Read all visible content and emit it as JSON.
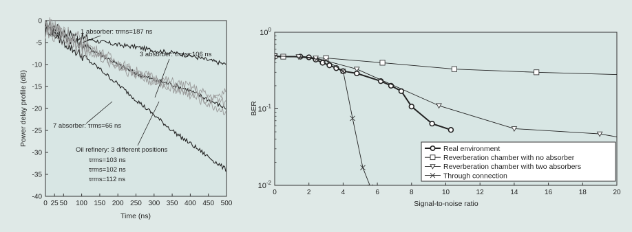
{
  "colors": {
    "panel": "#dfe9e7",
    "plot_bg": "#d8e6e4",
    "line_dark": "#222222",
    "line_grey": "#9a9a9a"
  },
  "chart_data": [
    {
      "type": "line",
      "title": "",
      "xlabel": "Time (ns)",
      "ylabel": "Power delay profile (dB)",
      "xlim": [
        0,
        500
      ],
      "ylim": [
        -40,
        0
      ],
      "xticks": [
        0,
        25,
        50,
        100,
        150,
        200,
        250,
        300,
        350,
        400,
        450,
        500
      ],
      "xtick_labels": [
        "0",
        "25",
        "50",
        "100",
        "150",
        "200",
        "250",
        "300",
        "350",
        "400",
        "450",
        "500"
      ],
      "yticks": [
        0,
        -5,
        -10,
        -15,
        -20,
        -25,
        -30,
        -35,
        -40
      ],
      "ytick_labels": [
        "0",
        "-5",
        "-10",
        "-15",
        "-20",
        "-25",
        "-30",
        "-35",
        "-40"
      ],
      "grid": false,
      "series": [
        {
          "name": "1 absorber",
          "style": "dark",
          "points": [
            [
              0,
              -1
            ],
            [
              25,
              -1.5
            ],
            [
              50,
              -2.5
            ],
            [
              100,
              -3.8
            ],
            [
              150,
              -4.8
            ],
            [
              200,
              -5.5
            ],
            [
              250,
              -6
            ],
            [
              300,
              -6.8
            ],
            [
              350,
              -7.3
            ],
            [
              400,
              -8
            ],
            [
              450,
              -9
            ],
            [
              500,
              -10
            ]
          ]
        },
        {
          "name": "3 absorber",
          "style": "dark",
          "points": [
            [
              0,
              -2
            ],
            [
              25,
              -3
            ],
            [
              50,
              -3.5
            ],
            [
              100,
              -5.5
            ],
            [
              150,
              -7.5
            ],
            [
              200,
              -10
            ],
            [
              250,
              -12
            ],
            [
              300,
              -13.5
            ],
            [
              350,
              -14.5
            ],
            [
              400,
              -16
            ],
            [
              450,
              -18
            ],
            [
              500,
              -20
            ]
          ]
        },
        {
          "name": "7 absorber",
          "style": "dark",
          "points": [
            [
              0,
              -1
            ],
            [
              25,
              -3
            ],
            [
              50,
              -5
            ],
            [
              100,
              -8
            ],
            [
              150,
              -11
            ],
            [
              200,
              -14.5
            ],
            [
              250,
              -18
            ],
            [
              300,
              -21.5
            ],
            [
              350,
              -25
            ],
            [
              400,
              -28
            ],
            [
              450,
              -31
            ],
            [
              500,
              -34
            ]
          ]
        },
        {
          "name": "Oil refinery 1",
          "style": "grey",
          "points": [
            [
              0,
              -1
            ],
            [
              25,
              -1.5
            ],
            [
              50,
              -2.5
            ],
            [
              100,
              -5
            ],
            [
              150,
              -7
            ],
            [
              200,
              -9.5
            ],
            [
              250,
              -11.5
            ],
            [
              300,
              -13
            ],
            [
              350,
              -14
            ],
            [
              400,
              -15
            ],
            [
              450,
              -17
            ],
            [
              500,
              -19
            ]
          ]
        },
        {
          "name": "Oil refinery 2",
          "style": "grey",
          "points": [
            [
              0,
              -1.5
            ],
            [
              25,
              -2.5
            ],
            [
              50,
              -3.5
            ],
            [
              100,
              -6
            ],
            [
              150,
              -8
            ],
            [
              200,
              -10
            ],
            [
              250,
              -12
            ],
            [
              300,
              -13.5
            ],
            [
              350,
              -15
            ],
            [
              400,
              -17
            ],
            [
              450,
              -19
            ],
            [
              500,
              -21
            ]
          ]
        },
        {
          "name": "Oil refinery 3",
          "style": "grey",
          "points": [
            [
              0,
              -2
            ],
            [
              25,
              -3
            ],
            [
              50,
              -4
            ],
            [
              100,
              -6
            ],
            [
              150,
              -8.5
            ],
            [
              200,
              -10.5
            ],
            [
              250,
              -12.5
            ],
            [
              300,
              -14
            ],
            [
              350,
              -15.5
            ],
            [
              400,
              -16.5
            ],
            [
              450,
              -18
            ],
            [
              500,
              -16
            ]
          ]
        }
      ],
      "annotations": {
        "a1": "1 absorber: τrms=187 ns",
        "a3": "3 absorber: τrms=106 ns",
        "a7": "7 absorber: τrms=66 ns",
        "oil_title": "Oil refinery: 3 different positions",
        "oil_1": "τrms=103 ns",
        "oil_2": "τrms=102 ns",
        "oil_3": "τrms=112 ns"
      }
    },
    {
      "type": "line",
      "title": "",
      "xlabel": "Signal-to-noise ratio",
      "ylabel": "BER",
      "yscale": "log",
      "xlim": [
        0,
        20
      ],
      "ylim": [
        0.01,
        1
      ],
      "xticks": [
        0,
        2,
        4,
        6,
        8,
        10,
        12,
        14,
        16,
        18,
        20
      ],
      "xtick_labels": [
        "0",
        "2",
        "4",
        "6",
        "8",
        "10",
        "12",
        "14",
        "16",
        "18",
        "20"
      ],
      "ytick_labels": [
        "10-2",
        "10-1",
        "100"
      ],
      "grid": false,
      "legend_position": "bottom-right",
      "series": [
        {
          "name": "Real environment",
          "marker": "circle",
          "x": [
            0,
            1.5,
            2,
            2.4,
            2.8,
            3.2,
            3.6,
            4,
            4.8,
            6.2,
            6.8,
            7.4,
            8,
            9.2,
            10.3
          ],
          "y": [
            0.48,
            0.48,
            0.47,
            0.44,
            0.4,
            0.37,
            0.34,
            0.31,
            0.29,
            0.23,
            0.2,
            0.17,
            0.107,
            0.064,
            0.053
          ]
        },
        {
          "name": "Reverberation chamber with no absorber",
          "marker": "square",
          "x": [
            0,
            0.5,
            3,
            6.3,
            10.5,
            15.3,
            20
          ],
          "y": [
            0.49,
            0.48,
            0.46,
            0.4,
            0.33,
            0.3,
            0.28
          ]
        },
        {
          "name": "Reverberation chamber with two absorbers",
          "marker": "triangle",
          "x": [
            0,
            1.4,
            2.4,
            4.8,
            9.6,
            14,
            19,
            20
          ],
          "y": [
            0.49,
            0.48,
            0.46,
            0.33,
            0.11,
            0.055,
            0.047,
            0.043
          ]
        },
        {
          "name": "Through connection",
          "marker": "x",
          "x": [
            0,
            1,
            2,
            3,
            4,
            4.55,
            5.15,
            5.6
          ],
          "y": [
            0.49,
            0.48,
            0.46,
            0.43,
            0.31,
            0.075,
            0.017,
            0.0095
          ]
        }
      ]
    }
  ]
}
